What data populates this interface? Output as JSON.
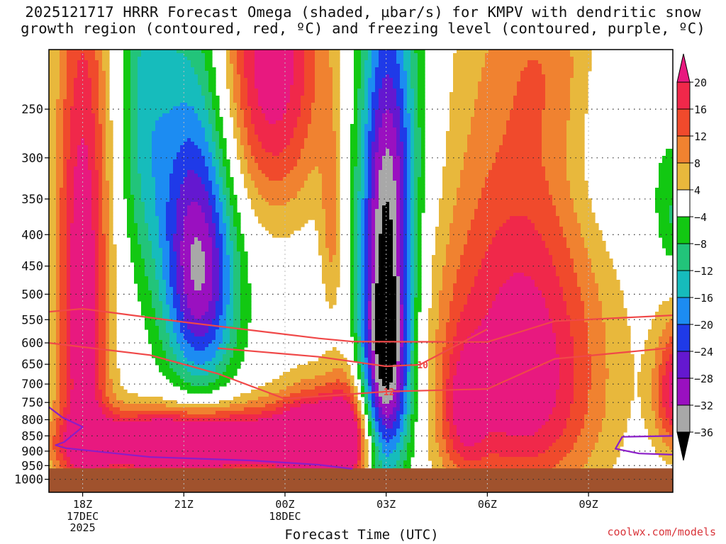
{
  "title_line1": "2025121717 HRRR Forecast Omega (shaded, µbar/s) for KMPV with dendritic snow",
  "title_line2": "growth region (contoured, red, ºC) and freezing level (contoured, purple, ºC)",
  "credit": "coolwx.com/models",
  "chart_data": {
    "type": "heatmap",
    "title": "2025121717 HRRR Forecast Omega (shaded, µbar/s) for KMPV with dendritic snow growth region (contoured, red, ºC) and freezing level (contoured, purple, ºC)",
    "xlabel": "Forecast Time (UTC)",
    "ylabel": "",
    "x_ticks": [
      {
        "label": "18Z",
        "sub": [
          "17DEC",
          "2025"
        ],
        "hour": 0
      },
      {
        "label": "21Z",
        "sub": [],
        "hour": 3
      },
      {
        "label": "00Z",
        "sub": [
          "18DEC"
        ],
        "hour": 6
      },
      {
        "label": "03Z",
        "sub": [],
        "hour": 9
      },
      {
        "label": "06Z",
        "sub": [],
        "hour": 12
      },
      {
        "label": "09Z",
        "sub": [],
        "hour": 15
      }
    ],
    "xlim_hours": [
      -1,
      17.5
    ],
    "y_ticks": [
      "250",
      "300",
      "350",
      "400",
      "450",
      "500",
      "550",
      "600",
      "650",
      "700",
      "750",
      "800",
      "850",
      "900",
      "950",
      "1000"
    ],
    "ylim_mb": [
      200,
      1050
    ],
    "y_scale": "log-pressure",
    "grid": true,
    "colorbar": {
      "labels": [
        "20",
        "16",
        "12",
        "8",
        "4",
        "−4",
        "−8",
        "−12",
        "−16",
        "−20",
        "−24",
        "−28",
        "−32",
        "−36"
      ],
      "bands": [
        {
          "lo": 16,
          "hi": 20,
          "color": "#f0284a"
        },
        {
          "lo": 12,
          "hi": 16,
          "color": "#f04a2c"
        },
        {
          "lo": 8,
          "hi": 12,
          "color": "#f08230"
        },
        {
          "lo": 4,
          "hi": 8,
          "color": "#e8b83c"
        },
        {
          "lo": -4,
          "hi": 4,
          "color": "#ffffff"
        },
        {
          "lo": -8,
          "hi": -4,
          "color": "#12c812"
        },
        {
          "lo": -12,
          "hi": -8,
          "color": "#22c47a"
        },
        {
          "lo": -16,
          "hi": -12,
          "color": "#16bcbc"
        },
        {
          "lo": -20,
          "hi": -16,
          "color": "#1c8cf2"
        },
        {
          "lo": -24,
          "hi": -20,
          "color": "#1f3ae8"
        },
        {
          "lo": -28,
          "hi": -24,
          "color": "#6418d0"
        },
        {
          "lo": -32,
          "hi": -28,
          "color": "#9a10c0"
        },
        {
          "lo": -36,
          "hi": -32,
          "color": "#a8a8a8"
        }
      ],
      "over_color": "#e8197f",
      "under_color": "#000000",
      "light_yellow": "#e8dc3c",
      "ground_color": "#a0522d"
    },
    "contours": [
      {
        "name": "dgz-top",
        "label": "",
        "color": "#f04848",
        "points": [
          [
            -1,
            534
          ],
          [
            0,
            528
          ],
          [
            3,
            555
          ],
          [
            7,
            590
          ],
          [
            8,
            597
          ],
          [
            12,
            598
          ],
          [
            14,
            553
          ],
          [
            17.5,
            541
          ]
        ]
      },
      {
        "name": "dgz-bottom",
        "label": "−12",
        "color": "#f04848",
        "points": [
          [
            -1,
            600
          ],
          [
            2,
            628
          ],
          [
            4,
            673
          ],
          [
            6,
            740
          ],
          [
            9,
            720
          ],
          [
            12,
            713
          ],
          [
            14,
            637
          ],
          [
            17.5,
            611
          ]
        ]
      },
      {
        "name": "dgz-mid",
        "label": "−10",
        "color": "#f04848",
        "points": [
          [
            4,
            612
          ],
          [
            7,
            632
          ],
          [
            9,
            655
          ],
          [
            10,
            651
          ],
          [
            12,
            570
          ]
        ]
      },
      {
        "name": "freezing-level-left",
        "label": "",
        "color": "#8b1ec8",
        "points": [
          [
            -1,
            763
          ],
          [
            -0.6,
            793
          ],
          [
            0,
            822
          ],
          [
            -0.55,
            870
          ],
          [
            -0.8,
            880
          ],
          [
            -0.5,
            890
          ],
          [
            2,
            920
          ],
          [
            5,
            932
          ],
          [
            7,
            947
          ],
          [
            8,
            962
          ]
        ]
      },
      {
        "name": "freezing-level-right",
        "label": "",
        "color": "#8b1ec8",
        "points": [
          [
            17.5,
            850
          ],
          [
            16,
            853
          ],
          [
            15.8,
            892
          ],
          [
            16.5,
            908
          ],
          [
            17.5,
            912
          ]
        ]
      }
    ]
  }
}
